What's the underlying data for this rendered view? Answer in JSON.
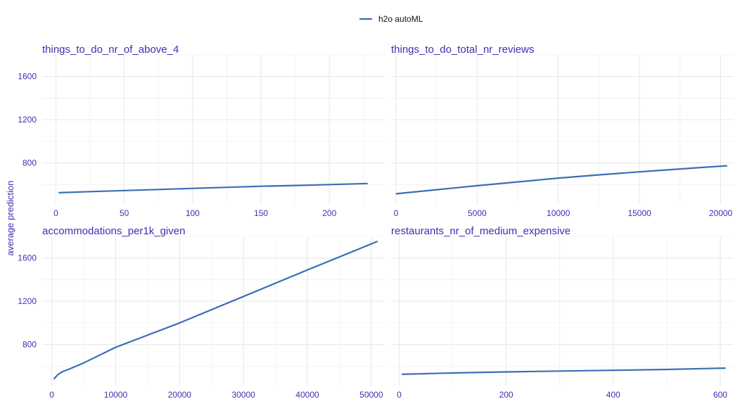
{
  "chart_data": {
    "type": "line",
    "ylabel": "average prediction",
    "legend": {
      "position": "top",
      "entries": [
        {
          "name": "h2o autoML",
          "color": "#3b6eb5"
        }
      ]
    },
    "grid": true,
    "ylim": [
      420,
      1800
    ],
    "yticks": [
      800,
      1200,
      1600
    ],
    "panels": [
      {
        "title": "things_to_do_nr_of_above_4",
        "xlim": [
          -10,
          240
        ],
        "xticks": [
          0,
          50,
          100,
          150,
          200
        ],
        "series": [
          {
            "name": "h2o autoML",
            "x": [
              2,
              25,
              50,
              75,
              100,
              125,
              150,
              175,
              200,
              228
            ],
            "y": [
              525,
              535,
              545,
              555,
              565,
              575,
              585,
              592,
              600,
              610
            ]
          }
        ]
      },
      {
        "title": "things_to_do_total_nr_reviews",
        "xlim": [
          -300,
          20800
        ],
        "xticks": [
          0,
          5000,
          10000,
          15000,
          20000
        ],
        "series": [
          {
            "name": "h2o autoML",
            "x": [
              0,
              2500,
              5000,
              7500,
              10000,
              12500,
              15000,
              17500,
              20400
            ],
            "y": [
              515,
              553,
              590,
              625,
              660,
              690,
              718,
              745,
              775
            ]
          }
        ]
      },
      {
        "title": "accommodations_per1k_given",
        "xlim": [
          -1500,
          52000
        ],
        "xticks": [
          0,
          10000,
          20000,
          30000,
          40000,
          50000
        ],
        "series": [
          {
            "name": "h2o autoML",
            "x": [
              300,
              1000,
              1700,
              2600,
              5000,
              10000,
              20000,
              30000,
              40000,
              51000
            ],
            "y": [
              480,
              525,
              550,
              570,
              630,
              775,
              1000,
              1245,
              1490,
              1755
            ]
          }
        ]
      },
      {
        "title": "restaurants_nr_of_medium_expensive",
        "xlim": [
          -15,
          625
        ],
        "xticks": [
          0,
          200,
          400,
          600
        ],
        "series": [
          {
            "name": "h2o autoML",
            "x": [
              5,
              100,
              200,
              300,
              400,
              500,
              610
            ],
            "y": [
              525,
              537,
              547,
              555,
              562,
              570,
              582
            ]
          }
        ]
      }
    ]
  }
}
